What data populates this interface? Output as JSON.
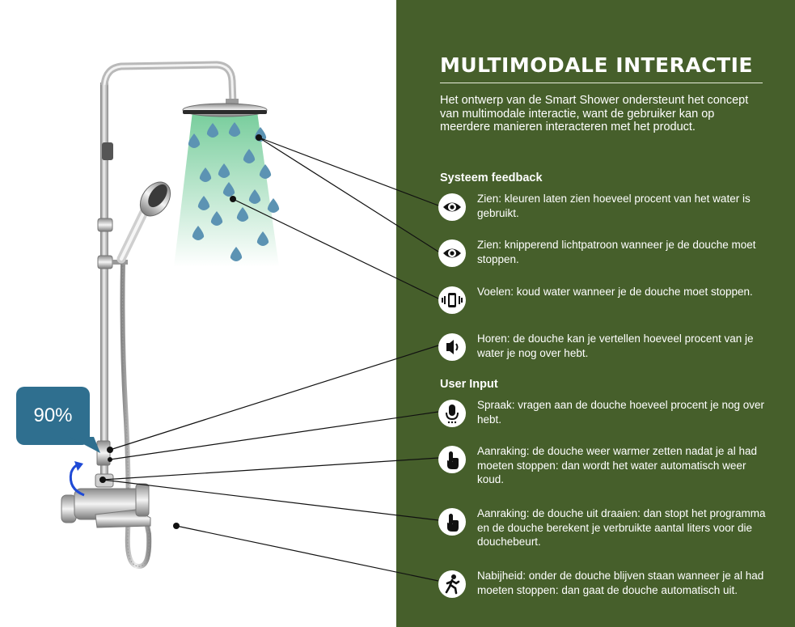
{
  "panel": {
    "title": "MULTIMODALE INTERACTIE",
    "intro": "Het ontwerp van de Smart Shower ondersteunt het concept van multimodale interactie, want de gebruiker kan op meerdere manieren interacteren met het product.",
    "section_feedback": "Systeem feedback",
    "section_input": "User Input",
    "items": [
      {
        "icon": "eye-icon",
        "text": "Zien: kleuren laten zien hoeveel procent van het water is gebruikt."
      },
      {
        "icon": "eye-icon",
        "text": "Zien: knipperend lichtpatroon wanneer je de douche moet stoppen."
      },
      {
        "icon": "vibration-icon",
        "text": "Voelen: koud water wanneer je de douche moet stoppen."
      },
      {
        "icon": "speaker-icon",
        "text": "Horen: de douche kan je vertellen hoeveel procent van je water je nog over hebt."
      },
      {
        "icon": "microphone-icon",
        "text": "Spraak: vragen aan de douche hoeveel procent je nog over hebt."
      },
      {
        "icon": "touch-icon",
        "text": "Aanraking: de douche weer warmer zetten nadat je al had moeten stoppen: dan wordt het water automatisch weer koud."
      },
      {
        "icon": "touch-icon",
        "text": "Aanraking: de douche uit draaien: dan stopt het programma en de douche berekent je verbruikte aantal liters voor die douchebeurt."
      },
      {
        "icon": "walking-person-icon",
        "text": "Nabijheid: onder de douche blijven staan wanneer je al had moeten stoppen: dan gaat de douche automatisch uit."
      }
    ]
  },
  "display": {
    "percentage": "90%"
  },
  "colors": {
    "panel_bg": "#465f2b",
    "bubble_bg": "#2f6f8f",
    "water_glow": "#5fc48a",
    "drop": "#5c93b3"
  }
}
